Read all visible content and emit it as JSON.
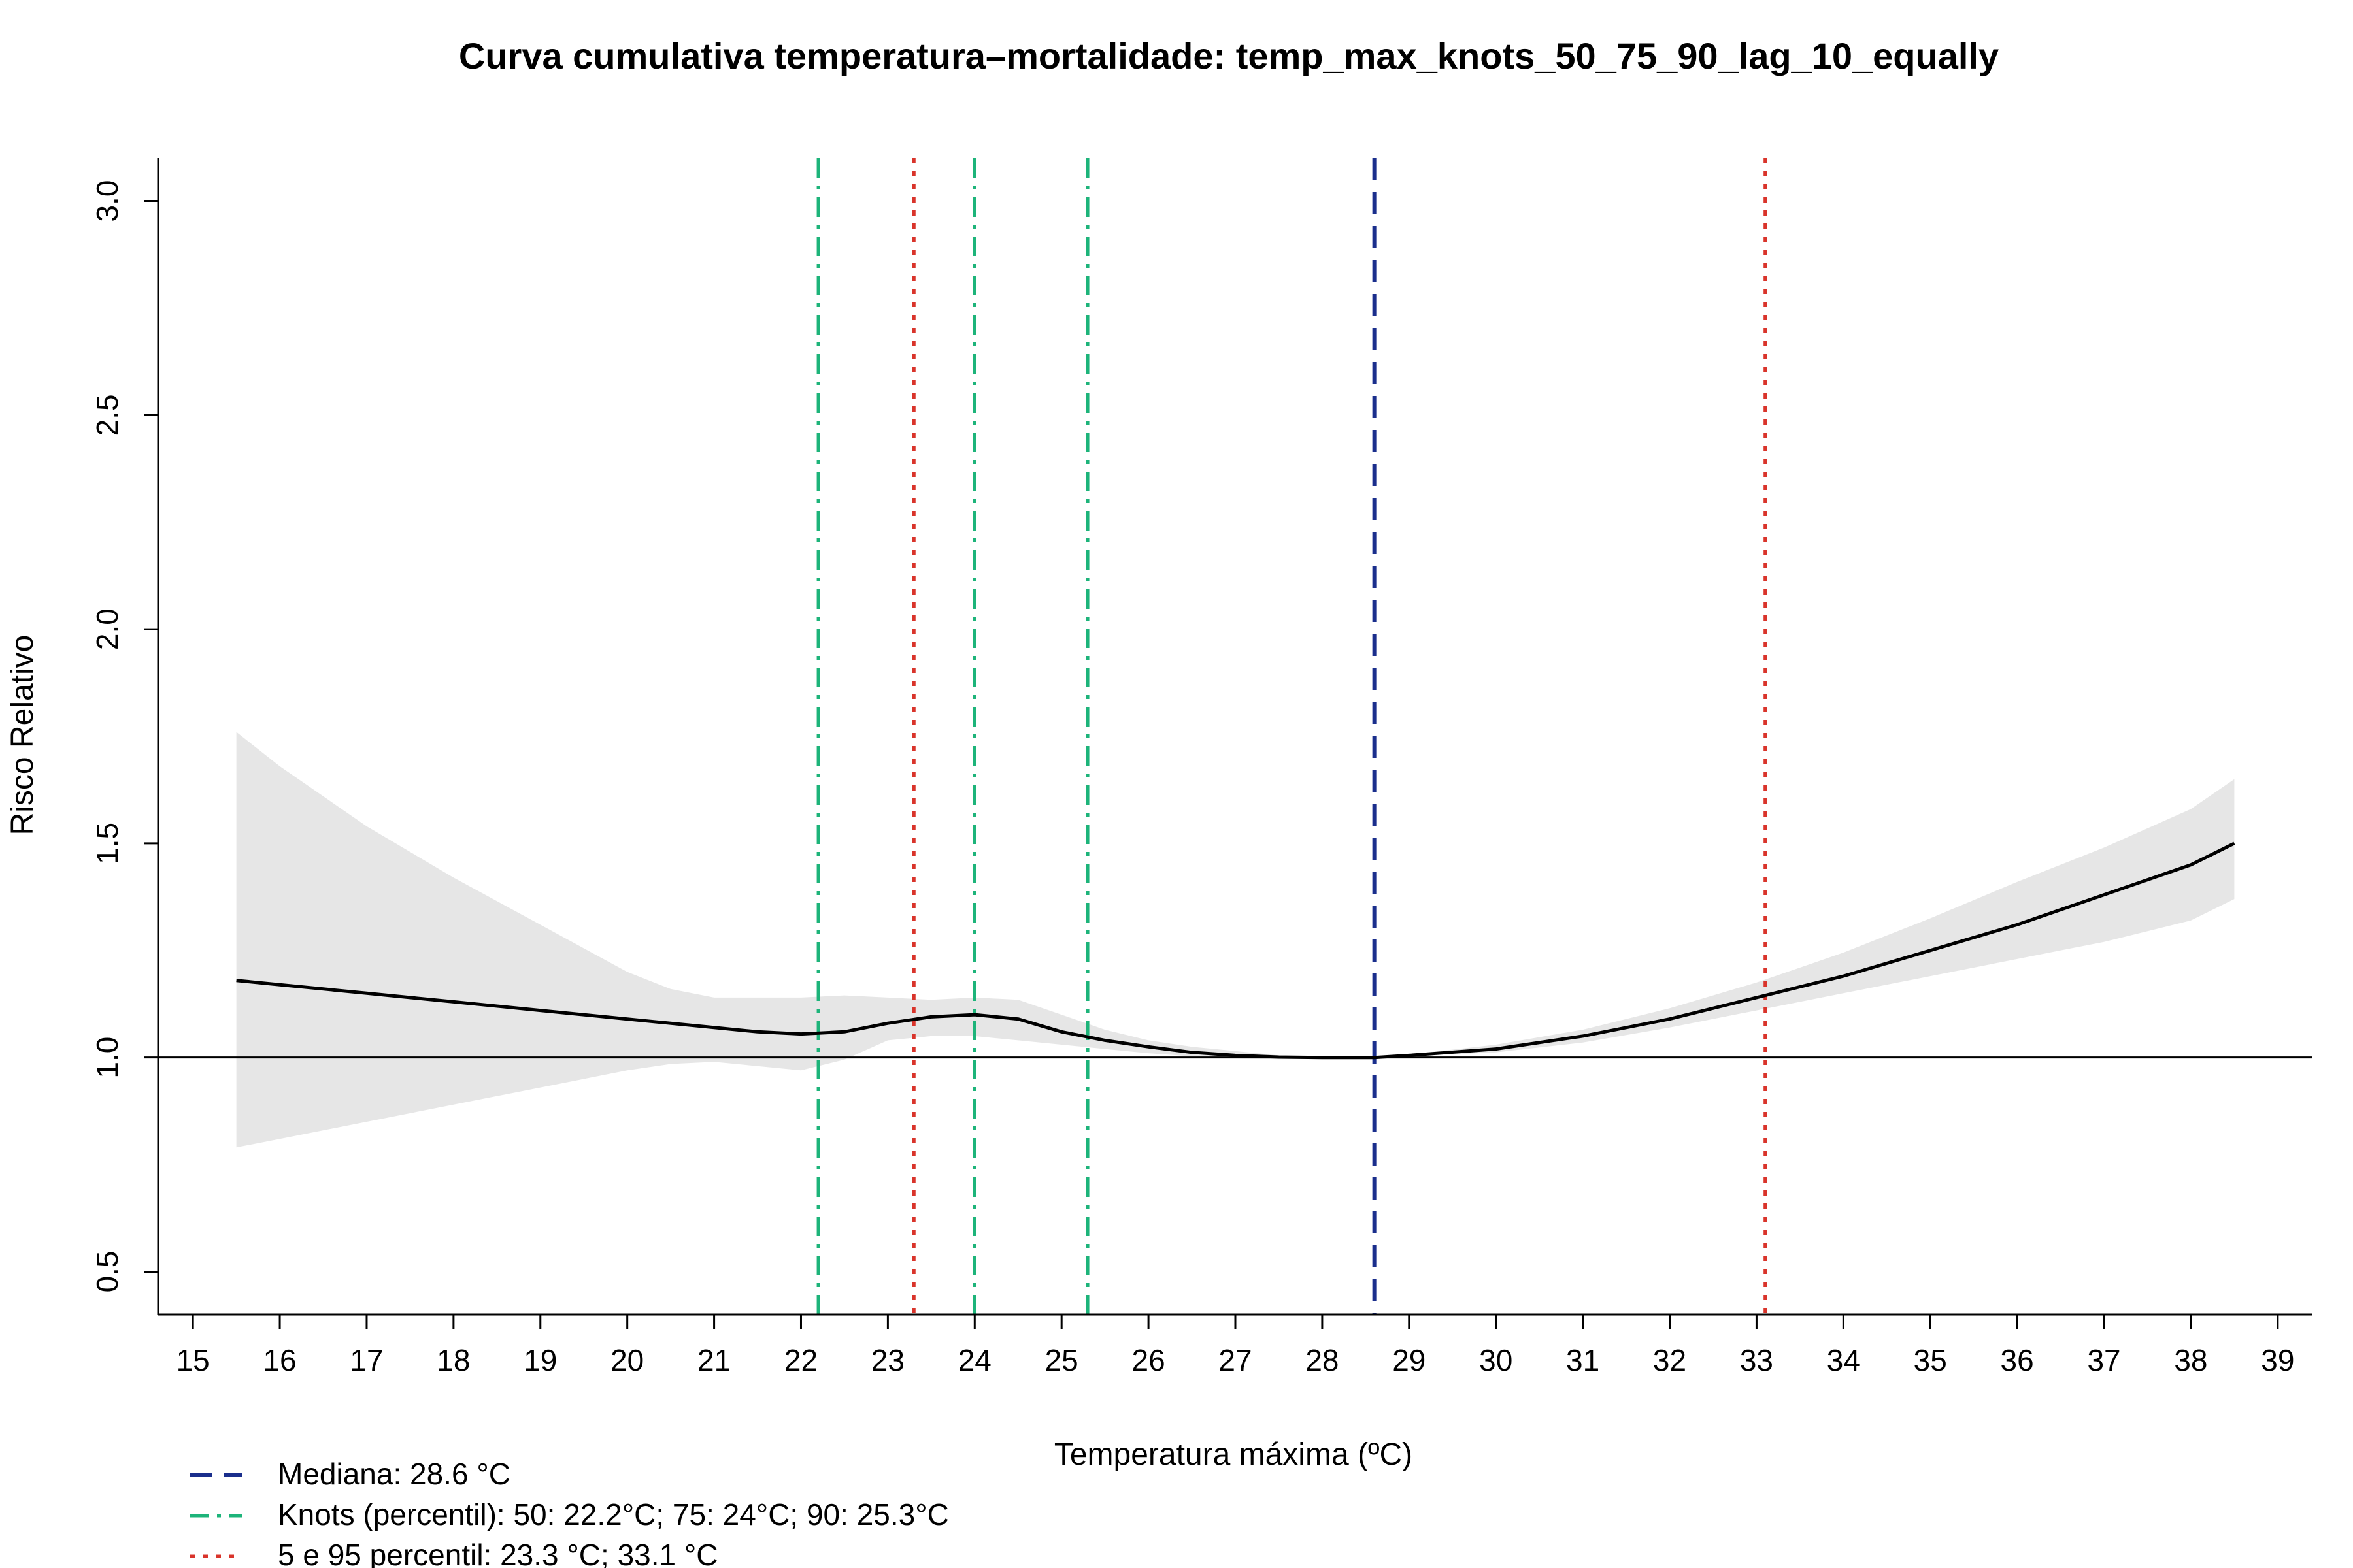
{
  "chart_data": {
    "type": "line",
    "title": "Curva cumulativa temperatura–mortalidade: temp_max_knots_50_75_90_lag_10_equally",
    "xlabel": "Temperatura máxima (ºC)",
    "ylabel": "Risco Relativo",
    "xlim": [
      14.6,
      39.4
    ],
    "ylim": [
      0.4,
      3.1
    ],
    "x_ticks": [
      15,
      16,
      17,
      18,
      19,
      20,
      21,
      22,
      23,
      24,
      25,
      26,
      27,
      28,
      29,
      30,
      31,
      32,
      33,
      34,
      35,
      36,
      37,
      38,
      39
    ],
    "y_ticks": [
      0.5,
      1.0,
      1.5,
      2.0,
      2.5,
      3.0
    ],
    "y_tick_labels": [
      "0.5",
      "1.0",
      "1.5",
      "2.0",
      "2.5",
      "3.0"
    ],
    "reference_line_y": 1.0,
    "series": [
      {
        "type": "line",
        "color": "#000000",
        "x": [
          15.5,
          16,
          17,
          18,
          19,
          20,
          21,
          21.5,
          22,
          22.5,
          23,
          23.5,
          24,
          24.5,
          25,
          25.5,
          26,
          26.5,
          27,
          27.5,
          28,
          28.6,
          29,
          30,
          31,
          32,
          33,
          34,
          35,
          36,
          37,
          38,
          38.5
        ],
        "y": [
          1.18,
          1.17,
          1.15,
          1.13,
          1.11,
          1.09,
          1.07,
          1.06,
          1.055,
          1.06,
          1.08,
          1.095,
          1.1,
          1.09,
          1.06,
          1.04,
          1.025,
          1.012,
          1.005,
          1.001,
          1.0,
          1.0,
          1.005,
          1.02,
          1.05,
          1.09,
          1.14,
          1.19,
          1.25,
          1.31,
          1.38,
          1.45,
          1.5
        ]
      },
      {
        "type": "band",
        "color": "#e6e6e6",
        "x": [
          15.5,
          16,
          17,
          18,
          19,
          20,
          20.5,
          21,
          21.5,
          22,
          22.5,
          23,
          23.5,
          24,
          24.5,
          25,
          25.5,
          26,
          26.5,
          27,
          27.5,
          28,
          28.6,
          29,
          30,
          31,
          32,
          33,
          34,
          35,
          36,
          37,
          38,
          38.5
        ],
        "lower": [
          0.79,
          0.81,
          0.85,
          0.89,
          0.93,
          0.97,
          0.985,
          0.99,
          0.98,
          0.97,
          0.995,
          1.04,
          1.05,
          1.05,
          1.04,
          1.03,
          1.02,
          1.01,
          1.003,
          0.998,
          0.996,
          0.997,
          1.0,
          1.003,
          1.012,
          1.035,
          1.07,
          1.11,
          1.15,
          1.19,
          1.23,
          1.27,
          1.32,
          1.37
        ],
        "upper": [
          1.76,
          1.68,
          1.54,
          1.42,
          1.31,
          1.2,
          1.16,
          1.14,
          1.14,
          1.14,
          1.145,
          1.14,
          1.135,
          1.14,
          1.135,
          1.1,
          1.065,
          1.04,
          1.025,
          1.015,
          1.005,
          1.0,
          1.0,
          1.007,
          1.03,
          1.065,
          1.115,
          1.175,
          1.245,
          1.325,
          1.41,
          1.49,
          1.58,
          1.65
        ]
      }
    ],
    "vlines": [
      {
        "x": 28.6,
        "color": "#1a2e8c",
        "style": "dashed",
        "group": "mediana"
      },
      {
        "x": 22.2,
        "color": "#1db47a",
        "style": "dotdash",
        "group": "knots"
      },
      {
        "x": 24.0,
        "color": "#1db47a",
        "style": "dotdash",
        "group": "knots"
      },
      {
        "x": 25.3,
        "color": "#1db47a",
        "style": "dotdash",
        "group": "knots"
      },
      {
        "x": 23.3,
        "color": "#d9342b",
        "style": "dotted",
        "group": "percentil"
      },
      {
        "x": 33.1,
        "color": "#d9342b",
        "style": "dotted",
        "group": "percentil"
      }
    ],
    "legend": {
      "placement": "bottom-left",
      "items": [
        {
          "label": "Mediana: 28.6 °C",
          "color": "#1a2e8c",
          "style": "dashed"
        },
        {
          "label": "Knots (percentil): 50: 22.2°C; 75: 24°C; 90: 25.3°C",
          "color": "#1db47a",
          "style": "dotdash"
        },
        {
          "label": "5 e 95 percentil: 23.3 °C; 33.1 °C",
          "color": "#d9342b",
          "style": "dotted"
        }
      ]
    },
    "grid": false
  }
}
